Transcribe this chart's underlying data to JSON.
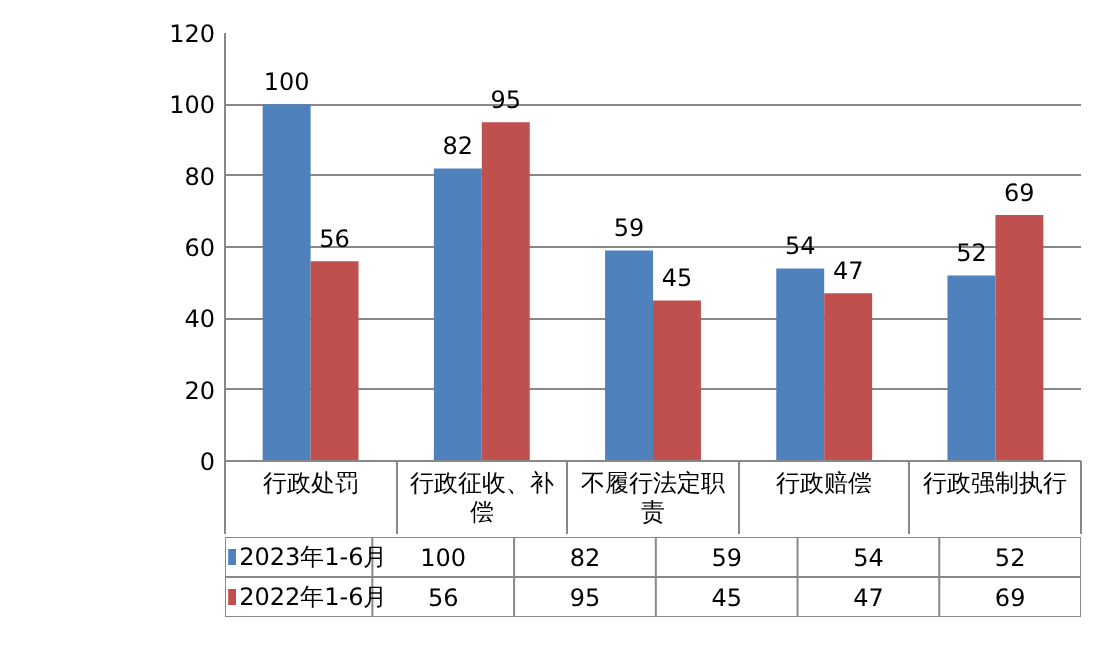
{
  "chart_data": {
    "type": "bar",
    "categories": [
      "行政处罚",
      "行政征收、补偿",
      "不履行法定职责",
      "行政赔偿",
      "行政强制执行"
    ],
    "series": [
      {
        "name": "2023年1-6月",
        "color": "#4f81bd",
        "values": [
          100,
          82,
          59,
          54,
          52
        ],
        "value_labels": [
          "100",
          "82",
          "59",
          "54",
          "52"
        ]
      },
      {
        "name": "2022年1-6月",
        "color": "#c0504d",
        "values": [
          56,
          95,
          45,
          47,
          69
        ],
        "value_labels": [
          "56",
          "95",
          "45",
          "47",
          "69"
        ]
      }
    ],
    "ylim": [
      0,
      120
    ],
    "yticks": [
      0,
      20,
      40,
      60,
      80,
      100,
      120
    ],
    "grid": "y",
    "data_labels": true,
    "legend": "bottom"
  }
}
